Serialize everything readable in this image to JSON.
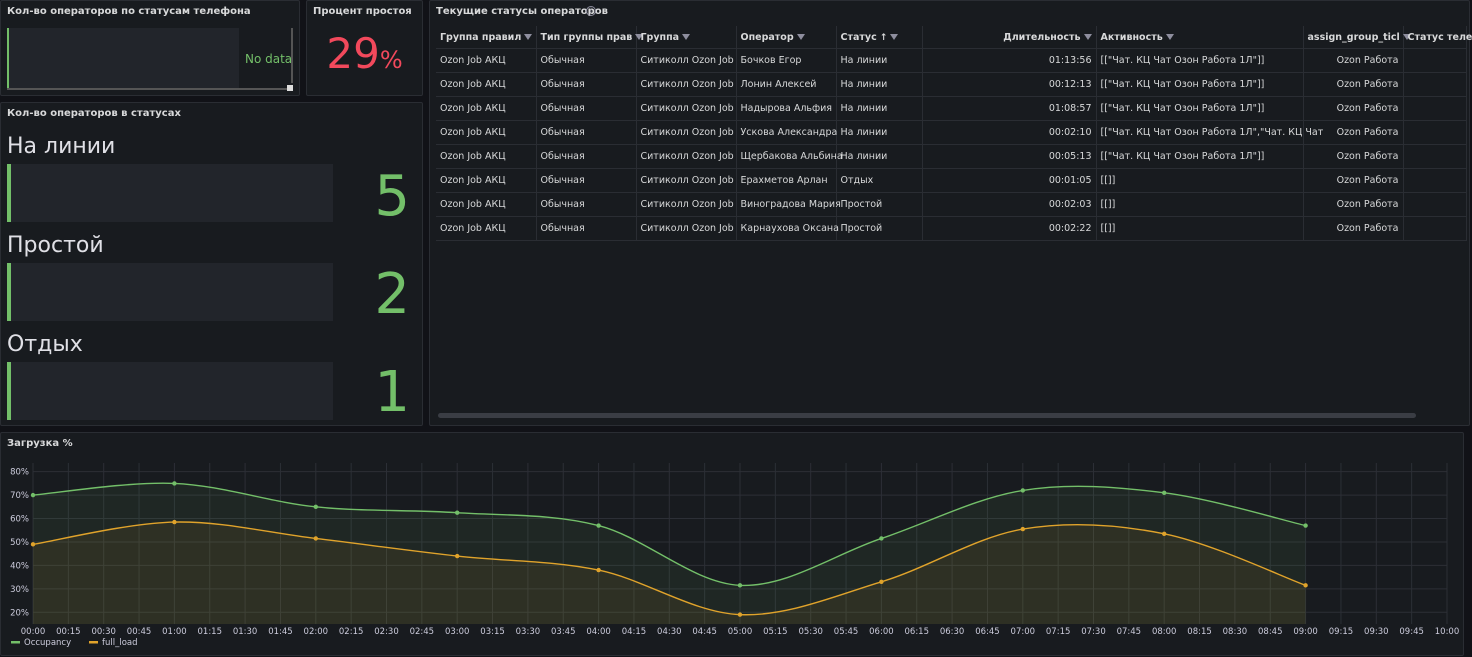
{
  "panels": {
    "phone_status": {
      "title": "Кол-во операторов по статусам телефона",
      "nodata": "No data"
    },
    "idle_percent": {
      "title": "Процент простоя",
      "value": "29",
      "unit": "%"
    },
    "operator_counts": {
      "title": "Кол-во операторов в статусах",
      "items": [
        {
          "label": "На линии",
          "value": "5"
        },
        {
          "label": "Простой",
          "value": "2"
        },
        {
          "label": "Отдых",
          "value": "1"
        }
      ]
    },
    "current_statuses": {
      "title": "Текущие статусы операторов",
      "columns": [
        "Группа правил",
        "Тип группы прав",
        "Группа",
        "Оператор",
        "Статус",
        "Длительность",
        "Активность",
        "assign_group_ticl",
        "Статус теле"
      ],
      "rows": [
        [
          "Ozon Job АКЦ",
          "Обычная",
          "Ситиколл Ozon Job",
          "Бочков Егор",
          "На линии",
          "01:13:56",
          "[[\"Чат. КЦ Чат Озон Работа 1Л\"]]",
          "Ozon Работа",
          ""
        ],
        [
          "Ozon Job АКЦ",
          "Обычная",
          "Ситиколл Ozon Job",
          "Лонин Алексей",
          "На линии",
          "00:12:13",
          "[[\"Чат. КЦ Чат Озон Работа 1Л\"]]",
          "Ozon Работа",
          ""
        ],
        [
          "Ozon Job АКЦ",
          "Обычная",
          "Ситиколл Ozon Job",
          "Надырова Альфия",
          "На линии",
          "01:08:57",
          "[[\"Чат. КЦ Чат Озон Работа 1Л\"]]",
          "Ozon Работа",
          ""
        ],
        [
          "Ozon Job АКЦ",
          "Обычная",
          "Ситиколл Ozon Job",
          "Ускова Александра",
          "На линии",
          "00:02:10",
          "[[\"Чат. КЦ Чат Озон Работа 1Л\",\"Чат. КЦ Чат",
          "Ozon Работа",
          ""
        ],
        [
          "Ozon Job АКЦ",
          "Обычная",
          "Ситиколл Ozon Job",
          "Щербакова Альбина",
          "На линии",
          "00:05:13",
          "[[\"Чат. КЦ Чат Озон Работа 1Л\"]]",
          "Ozon Работа",
          ""
        ],
        [
          "Ozon Job АКЦ",
          "Обычная",
          "Ситиколл Ozon Job",
          "Ерахметов Арлан",
          "Отдых",
          "00:01:05",
          "[[]]",
          "Ozon Работа",
          ""
        ],
        [
          "Ozon Job АКЦ",
          "Обычная",
          "Ситиколл Ozon Job",
          "Виноградова Мария",
          "Простой",
          "00:02:03",
          "[[]]",
          "Ozon Работа",
          ""
        ],
        [
          "Ozon Job АКЦ",
          "Обычная",
          "Ситиколл Ozon Job",
          "Карнаухова Оксана",
          "Простой",
          "00:02:22",
          "[[]]",
          "Ozon Работа",
          ""
        ]
      ]
    },
    "load": {
      "title": "Загрузка %"
    }
  },
  "colors": {
    "green": "#73bf69",
    "orange": "#e0a32b",
    "red": "#f2495c"
  },
  "chart_data": {
    "type": "line",
    "x": [
      "00:00",
      "01:00",
      "02:00",
      "03:00",
      "04:00",
      "05:00",
      "06:00",
      "07:00",
      "08:00",
      "09:00"
    ],
    "xticks": [
      "00:00",
      "00:15",
      "00:30",
      "00:45",
      "01:00",
      "01:15",
      "01:30",
      "01:45",
      "02:00",
      "02:15",
      "02:30",
      "02:45",
      "03:00",
      "03:15",
      "03:30",
      "03:45",
      "04:00",
      "04:15",
      "04:30",
      "04:45",
      "05:00",
      "05:15",
      "05:30",
      "05:45",
      "06:00",
      "06:15",
      "06:30",
      "06:45",
      "07:00",
      "07:15",
      "07:30",
      "07:45",
      "08:00",
      "08:15",
      "08:30",
      "08:45",
      "09:00",
      "09:15",
      "09:30",
      "09:45",
      "10:00"
    ],
    "yticks": [
      "20%",
      "30%",
      "40%",
      "50%",
      "60%",
      "70%",
      "80%"
    ],
    "ylim": [
      15,
      82
    ],
    "xlim_hours": [
      0,
      10
    ],
    "series": [
      {
        "name": "Occupancy",
        "color": "#73bf69",
        "values": [
          70,
          75,
          65,
          62.5,
          57,
          31.5,
          51.5,
          72,
          71,
          57
        ]
      },
      {
        "name": "full_load",
        "color": "#e0a32b",
        "values": [
          49,
          58.5,
          51.5,
          44,
          38,
          19,
          33,
          55.5,
          53.5,
          31.5
        ]
      }
    ],
    "grid": true,
    "legend": "bottom-left"
  }
}
